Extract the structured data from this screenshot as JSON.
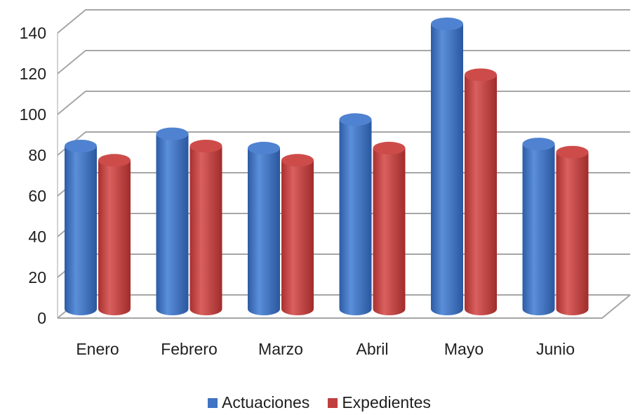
{
  "chart_data": {
    "type": "bar",
    "style": "3d-cylinder",
    "categories": [
      "Enero",
      "Febrero",
      "Marzo",
      "Abril",
      "Mayo",
      "Junio"
    ],
    "series": [
      {
        "name": "Actuaciones",
        "values": [
          80,
          86,
          79,
          93,
          140,
          81
        ],
        "color": "#3f73c3"
      },
      {
        "name": "Expedientes",
        "values": [
          73,
          80,
          73,
          79,
          115,
          77
        ],
        "color": "#c0403f"
      }
    ],
    "ylim": [
      0,
      140
    ],
    "yticks": [
      0,
      20,
      40,
      60,
      80,
      100,
      120,
      140
    ],
    "grid": true,
    "legend_position": "bottom"
  }
}
